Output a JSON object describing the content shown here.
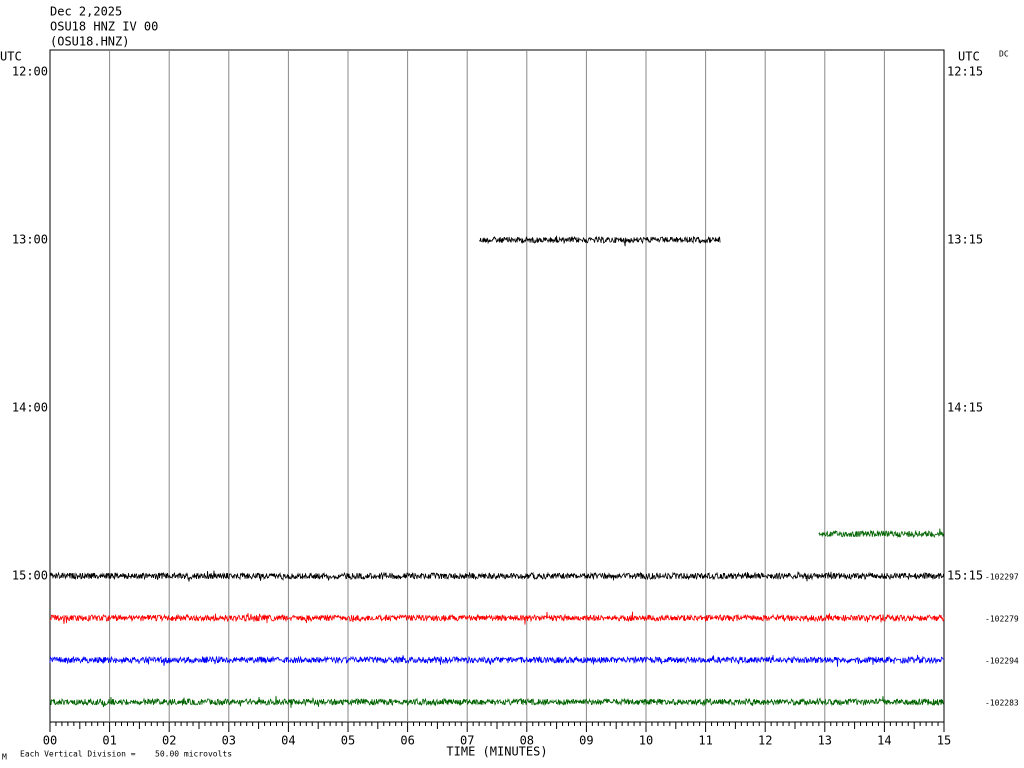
{
  "header": {
    "date": "Dec 2,2025",
    "station": "OSU18 HNZ IV 00",
    "channel": "(OSU18.HNZ)"
  },
  "left_axis": {
    "title": "UTC",
    "labels": [
      "12:00",
      "13:00",
      "14:00",
      "15:00"
    ]
  },
  "right_axis": {
    "title": "UTC",
    "labels": [
      "12:15",
      "13:15",
      "14:15",
      "15:15"
    ],
    "dc": "DC"
  },
  "x_axis": {
    "title": "TIME (MINUTES)",
    "labels": [
      "00",
      "01",
      "02",
      "03",
      "04",
      "05",
      "06",
      "07",
      "08",
      "09",
      "10",
      "11",
      "12",
      "13",
      "14",
      "15"
    ]
  },
  "footer": {
    "mark": "M",
    "scale_text": "Each Vertical Division =",
    "scale_value": "50.00 microvolts"
  },
  "traces": [
    {
      "row": 4,
      "start": 7.2,
      "end": 11.25,
      "color": "#000000"
    },
    {
      "row": 11,
      "start": 12.9,
      "end": 15,
      "color": "#006400"
    },
    {
      "row": 12,
      "start": 0,
      "end": 15,
      "color": "#000000",
      "offset_label": "-102297"
    },
    {
      "row": 13,
      "start": 0,
      "end": 15,
      "color": "#ff0000",
      "offset_label": "-102279"
    },
    {
      "row": 14,
      "start": 0,
      "end": 15,
      "color": "#0000ff",
      "offset_label": "-102294"
    },
    {
      "row": 15,
      "start": 0,
      "end": 15,
      "color": "#006400",
      "offset_label": "-102283"
    }
  ]
}
